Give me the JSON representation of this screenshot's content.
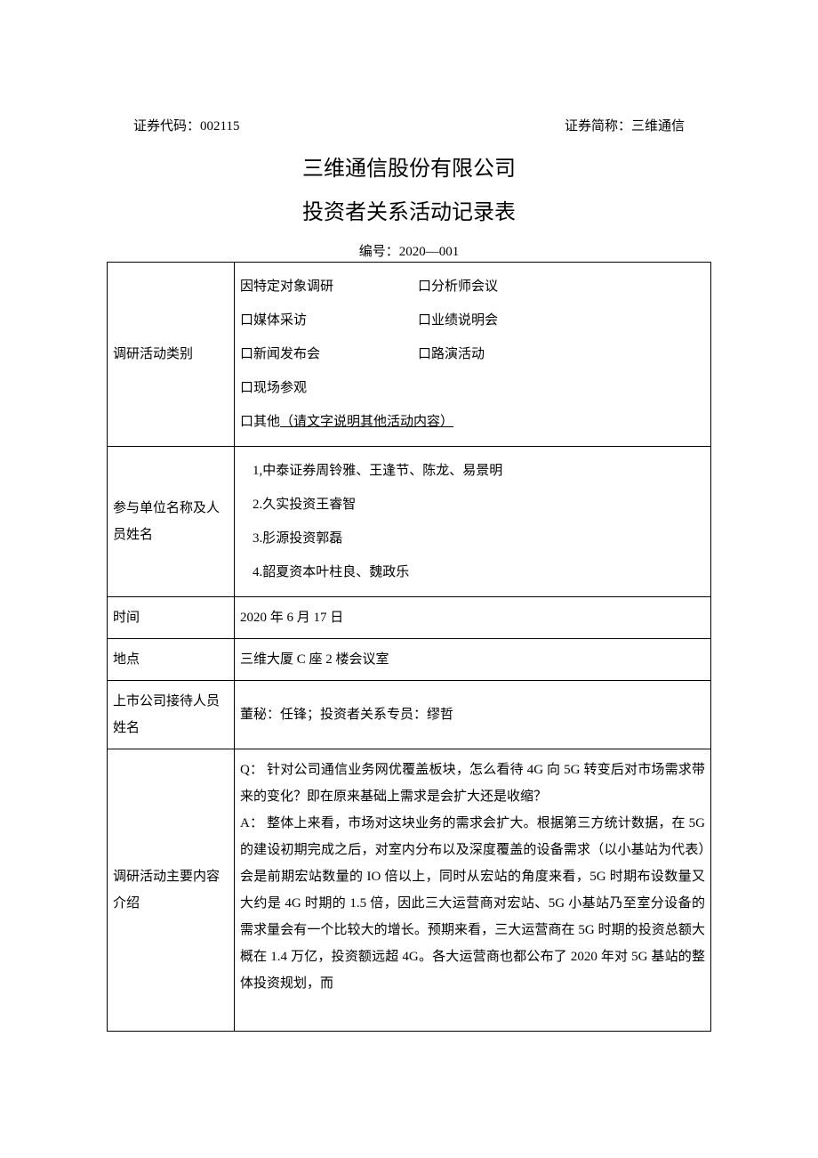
{
  "header": {
    "code_label": "证券代码：002115",
    "name_label": "证券简称：三维通信"
  },
  "title": "三维通信股份有限公司",
  "subtitle": "投资者关系活动记录表",
  "doc_number": "编号：2020—001",
  "rows": {
    "category": {
      "label": "调研活动类别",
      "opts": [
        {
          "mark": "因",
          "text": "特定对象调研"
        },
        {
          "mark": "口",
          "text": "分析师会议"
        },
        {
          "mark": "口",
          "text": "媒体采访"
        },
        {
          "mark": "口",
          "text": "业绩说明会"
        },
        {
          "mark": "口",
          "text": "新闻发布会"
        },
        {
          "mark": "口",
          "text": "路演活动"
        },
        {
          "mark": "口",
          "text": "现场参观"
        },
        {
          "mark": "口",
          "text_prefix": "其他",
          "text_underline": "（请文字说明其他活动内容）"
        }
      ]
    },
    "participants": {
      "label": "参与单位名称及人员姓名",
      "items": [
        "1,中泰证券周铃雅、王逢节、陈龙、易景明",
        "2.久实投资王睿智",
        "3.肜源投资郭磊",
        "4.韶夏资本叶柱良、魏政乐"
      ]
    },
    "time": {
      "label": "时间",
      "value": "2020 年 6 月 17 日"
    },
    "location": {
      "label": "地点",
      "value": "三维大厦 C 座 2 楼会议室"
    },
    "reception": {
      "label": "上市公司接待人员姓名",
      "value": "董秘：任锋；投资者关系专员：缪哲"
    },
    "content": {
      "label": "调研活动主要内容介绍",
      "q": "Q： 针对公司通信业务网优覆盖板块，怎么看待 4G 向 5G 转变后对市场需求带来的变化？即在原来基础上需求是会扩大还是收缩？",
      "a": "A： 整体上来看，市场对这块业务的需求会扩大。根据第三方统计数据，在 5G 的建设初期完成之后，对室内分布以及深度覆盖的设备需求（以小基站为代表）会是前期宏站数量的 IO 倍以上，同时从宏站的角度来看，5G 时期布设数量又大约是 4G 时期的 1.5 倍，因此三大运营商对宏站、5G 小基站乃至室分设备的需求量会有一个比较大的增长。预期来看，三大运营商在 5G 时期的投资总额大概在 1.4 万亿，投资额远超 4G。各大运营商也都公布了 2020 年对 5G 基站的整体投资规划，而"
    }
  }
}
